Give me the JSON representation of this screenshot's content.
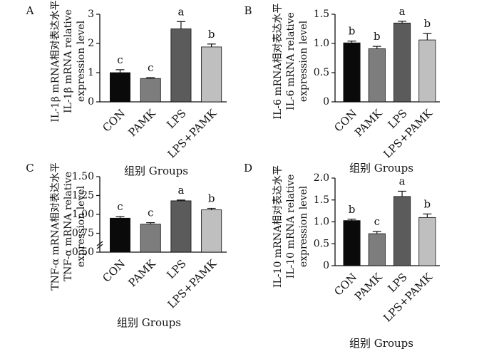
{
  "chart_data": [
    {
      "type": "bar",
      "panel_label": "A",
      "categories": [
        "CON",
        "PAMK",
        "LPS",
        "LPS+PAMK"
      ],
      "values": [
        1.0,
        0.8,
        2.5,
        1.88
      ],
      "errors": [
        0.1,
        0.03,
        0.25,
        0.1
      ],
      "sig_letters": [
        "c",
        "c",
        "a",
        "b"
      ],
      "colors": [
        "#0a0a0a",
        "#7d7d7d",
        "#5b5b5b",
        "#bfbfbf"
      ],
      "ylabel_lines": [
        "IL-1β mRNA相对表达水平",
        "IL-1β mRNA relative",
        "expression level"
      ],
      "xlabel": "组别 Groups",
      "ylim": [
        0,
        3
      ],
      "yticks": [
        "0",
        "1",
        "2",
        "3"
      ]
    },
    {
      "type": "bar",
      "panel_label": "B",
      "categories": [
        "CON",
        "PAMK",
        "LPS",
        "LPS+PAMK"
      ],
      "values": [
        1.01,
        0.91,
        1.35,
        1.06
      ],
      "errors": [
        0.03,
        0.04,
        0.03,
        0.11
      ],
      "sig_letters": [
        "b",
        "b",
        "a",
        "b"
      ],
      "colors": [
        "#0a0a0a",
        "#7d7d7d",
        "#5b5b5b",
        "#bfbfbf"
      ],
      "ylabel_lines": [
        "IL-6 mRNA相对表达水平",
        "IL-6 mRNA relative",
        "expression level"
      ],
      "xlabel": "组别 Groups",
      "ylim": [
        0,
        1.5
      ],
      "yticks": [
        "0",
        "0.5",
        "1.0",
        "1.5"
      ]
    },
    {
      "type": "bar",
      "panel_label": "C",
      "categories": [
        "CON",
        "PAMK",
        "LPS",
        "LPS+PAMK"
      ],
      "values": [
        0.95,
        0.87,
        1.18,
        1.06
      ],
      "errors": [
        0.02,
        0.02,
        0.01,
        0.02
      ],
      "sig_letters": [
        "c",
        "c",
        "a",
        "b"
      ],
      "colors": [
        "#0a0a0a",
        "#7d7d7d",
        "#5b5b5b",
        "#bfbfbf"
      ],
      "ylabel_lines": [
        "TNF-α mRNA相对表达水平",
        "TNF-α mRNA relative",
        "expression level"
      ],
      "xlabel": "组别 Groups",
      "ylim": [
        0.5,
        1.5
      ],
      "yticks": [
        "0.50",
        "0.75",
        "1.00",
        "1.25",
        "1.50"
      ],
      "axis_break": true
    },
    {
      "type": "bar",
      "panel_label": "D",
      "categories": [
        "CON",
        "PAMK",
        "LPS",
        "LPS+PAMK"
      ],
      "values": [
        1.03,
        0.73,
        1.58,
        1.1
      ],
      "errors": [
        0.03,
        0.05,
        0.12,
        0.08
      ],
      "sig_letters": [
        "b",
        "c",
        "a",
        "b"
      ],
      "colors": [
        "#0a0a0a",
        "#7d7d7d",
        "#5b5b5b",
        "#bfbfbf"
      ],
      "ylabel_lines": [
        "IL-10 mRNA相对表达水平",
        "IL-10 mRNA relative",
        "expression level"
      ],
      "xlabel": "组别 Groups",
      "ylim": [
        0,
        2
      ],
      "yticks": [
        "0",
        "0.5",
        "1.0",
        "1.5",
        "2.0"
      ]
    }
  ]
}
